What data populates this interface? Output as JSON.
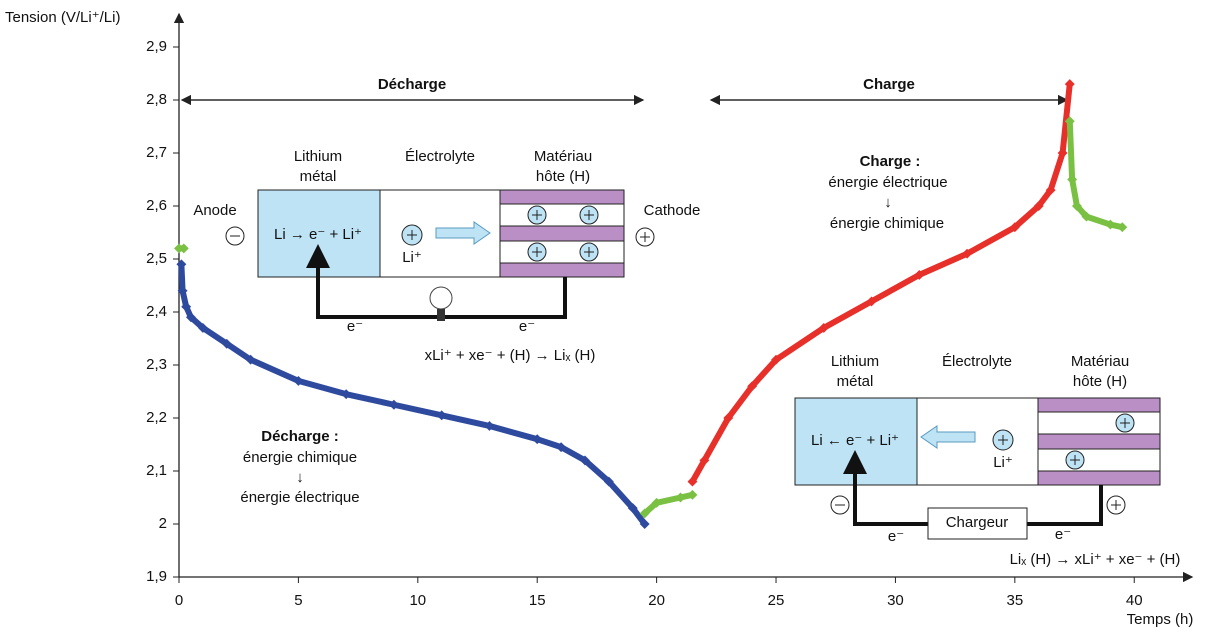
{
  "chart_data": {
    "type": "line",
    "ylabel": "Tension (V/Li⁺/Li)",
    "xlabel": "Temps (h)",
    "xlim": [
      0,
      42
    ],
    "xticks": [
      0,
      5,
      10,
      15,
      20,
      25,
      30,
      35,
      40
    ],
    "ylim": [
      1.9,
      2.95
    ],
    "yticks": [
      {
        "value": 1.9,
        "label": "1,9"
      },
      2,
      {
        "value": 2.1,
        "label": "2,1"
      },
      {
        "value": 2.2,
        "label": "2,2"
      },
      {
        "value": 2.3,
        "label": "2,3"
      },
      {
        "value": 2.4,
        "label": "2,4"
      },
      {
        "value": 2.5,
        "label": "2,5"
      },
      {
        "value": 2.6,
        "label": "2,6"
      },
      {
        "value": 2.7,
        "label": "2,7"
      },
      {
        "value": 2.8,
        "label": "2,8"
      },
      {
        "value": 2.9,
        "label": "2,9"
      }
    ],
    "series": [
      {
        "color": "#7ac143",
        "x": [
          0,
          0.2
        ],
        "values": [
          2.52,
          2.52
        ]
      },
      {
        "color": "#2e4a9e",
        "x": [
          0.1,
          0.15,
          0.3,
          0.5,
          1,
          2,
          3,
          5,
          7,
          9,
          11,
          13,
          15,
          16,
          17,
          18,
          19,
          19.5
        ],
        "values": [
          2.49,
          2.44,
          2.41,
          2.39,
          2.37,
          2.34,
          2.31,
          2.27,
          2.245,
          2.225,
          2.205,
          2.185,
          2.16,
          2.145,
          2.12,
          2.08,
          2.03,
          2.0
        ]
      },
      {
        "color": "#7ac143",
        "x": [
          19.5,
          20,
          21,
          21.5
        ],
        "values": [
          2.02,
          2.04,
          2.05,
          2.055
        ]
      },
      {
        "color": "#e8302a",
        "x": [
          21.5,
          22,
          23,
          24,
          25,
          27,
          29,
          31,
          33,
          35,
          36,
          36.5,
          37,
          37.3
        ],
        "values": [
          2.08,
          2.12,
          2.2,
          2.26,
          2.31,
          2.37,
          2.42,
          2.47,
          2.51,
          2.56,
          2.6,
          2.63,
          2.7,
          2.83
        ]
      },
      {
        "color": "#7ac143",
        "x": [
          37.3,
          37.4,
          37.6,
          38,
          39,
          39.5
        ],
        "values": [
          2.76,
          2.65,
          2.6,
          2.58,
          2.565,
          2.56
        ]
      }
    ],
    "regions": {
      "discharge": "Décharge",
      "charge": "Charge"
    },
    "discharge_note": [
      "Décharge :",
      "énergie chimique",
      "↓",
      "énergie électrique"
    ],
    "charge_note": [
      "Charge :",
      "énergie électrique",
      "↓",
      "énergie chimique"
    ]
  },
  "discharge_cell": {
    "anode_label": [
      "Lithium",
      "métal"
    ],
    "electrolyte_label": "Électrolyte",
    "host_label": [
      "Matériau",
      "hôte (H)"
    ],
    "anode": "Anode",
    "cathode": "Cathode",
    "reaction": "Li → e⁻ + Li⁺",
    "ion": "Li⁺",
    "electron": "e⁻",
    "equation": "xLi⁺ + xe⁻ + (H) → Liₓ (H)"
  },
  "charge_cell": {
    "anode_label": [
      "Lithium",
      "métal"
    ],
    "electrolyte_label": "Électrolyte",
    "host_label": [
      "Matériau",
      "hôte (H)"
    ],
    "reaction": "Li ← e⁻ + Li⁺",
    "ion": "Li⁺",
    "electron": "e⁻",
    "charger": "Chargeur",
    "equation": "Liₓ (H) → xLi⁺ + xe⁻ + (H)"
  }
}
